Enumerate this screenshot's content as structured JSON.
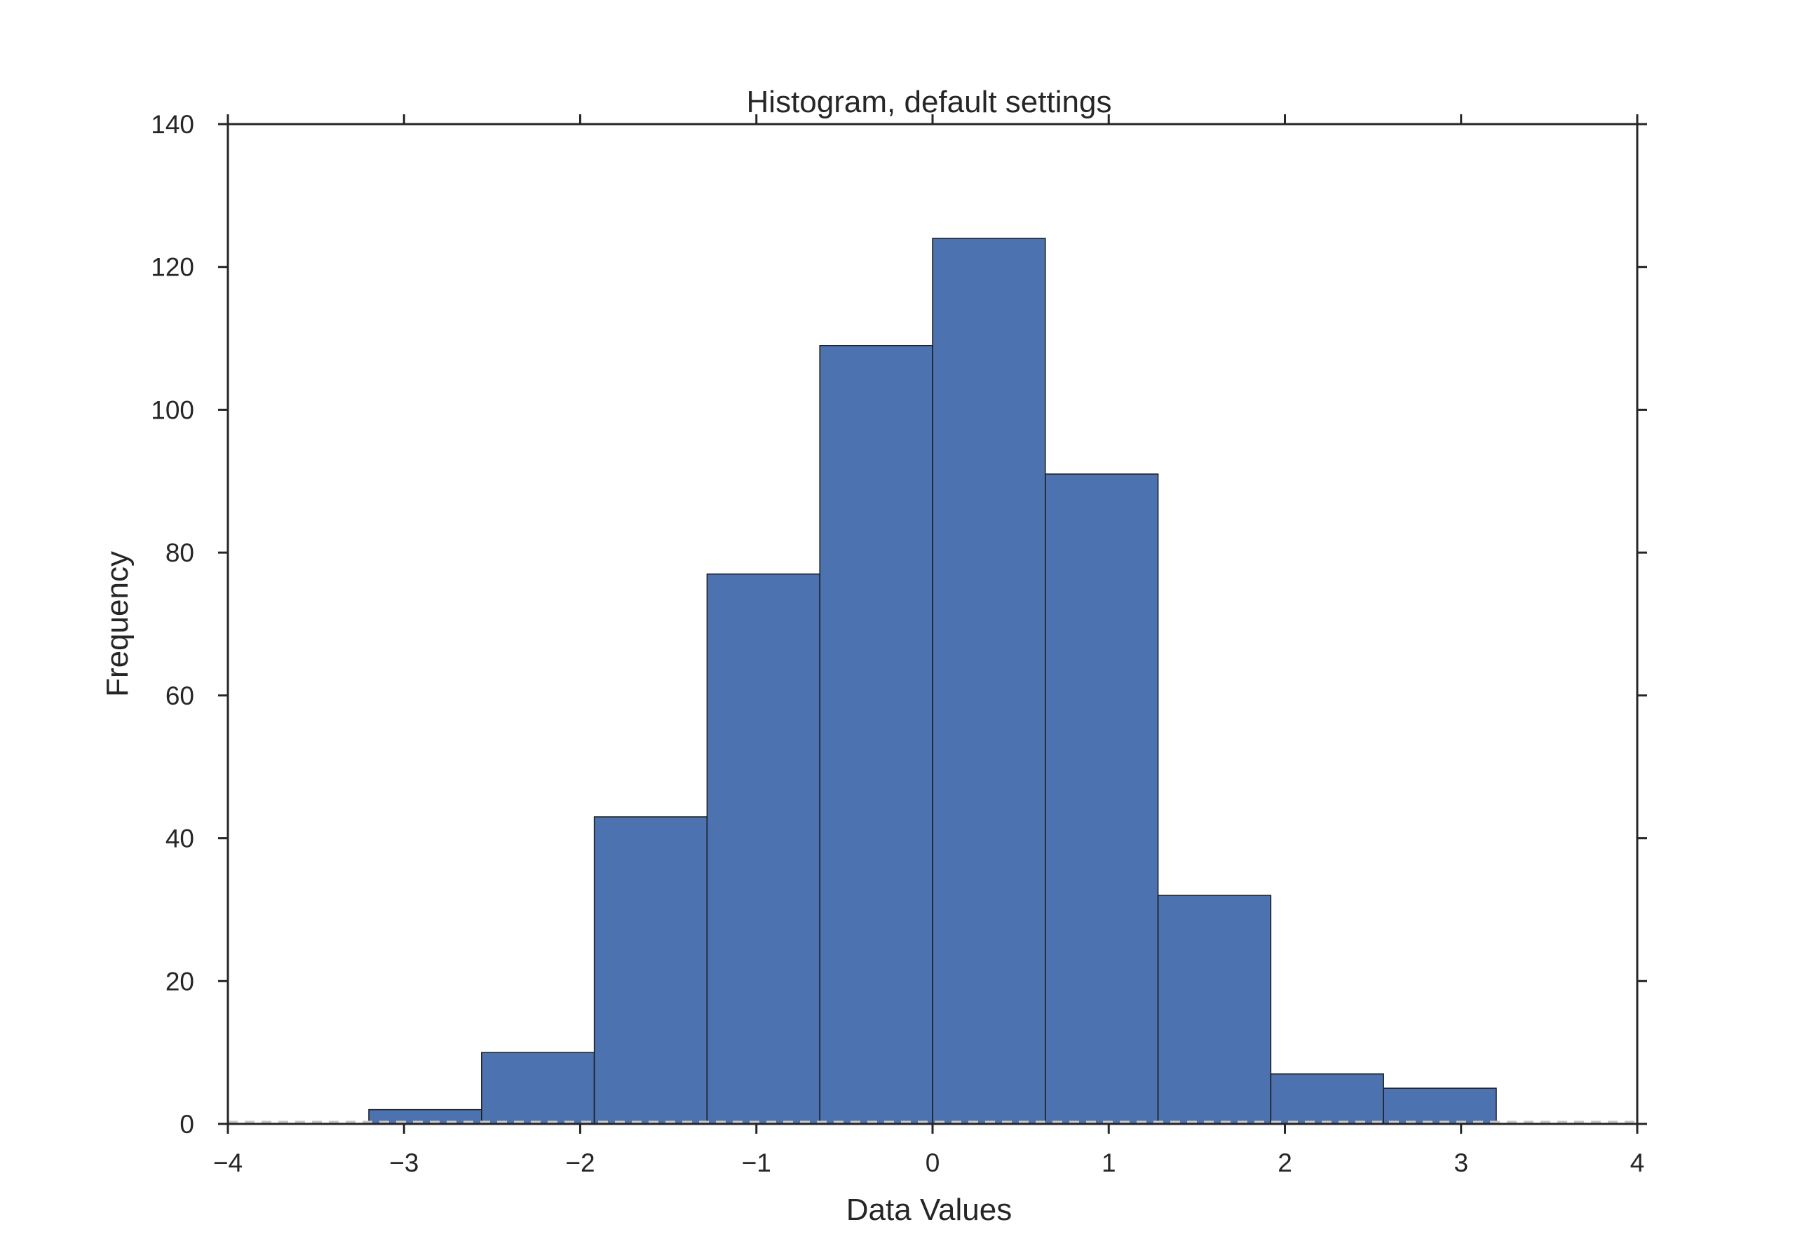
{
  "chart_data": {
    "type": "bar",
    "title": "Histogram, default settings",
    "xlabel": "Data Values",
    "ylabel": "Frequency",
    "xlim": [
      -4,
      4
    ],
    "ylim": [
      0,
      140
    ],
    "bins": [
      {
        "x0": -3.2,
        "x1": -2.56,
        "value": 2
      },
      {
        "x0": -2.56,
        "x1": -1.92,
        "value": 10
      },
      {
        "x0": -1.92,
        "x1": -1.28,
        "value": 43
      },
      {
        "x0": -1.28,
        "x1": -0.64,
        "value": 77
      },
      {
        "x0": -0.64,
        "x1": 0.0,
        "value": 109
      },
      {
        "x0": 0.0,
        "x1": 0.64,
        "value": 124
      },
      {
        "x0": 0.64,
        "x1": 1.28,
        "value": 91
      },
      {
        "x0": 1.28,
        "x1": 1.92,
        "value": 32
      },
      {
        "x0": 1.92,
        "x1": 2.56,
        "value": 7
      },
      {
        "x0": 2.56,
        "x1": 3.2,
        "value": 5
      }
    ],
    "xticks": [
      {
        "value": -4,
        "label": "−4"
      },
      {
        "value": -3,
        "label": "−3"
      },
      {
        "value": -2,
        "label": "−2"
      },
      {
        "value": -1,
        "label": "−1"
      },
      {
        "value": 0,
        "label": "0"
      },
      {
        "value": 1,
        "label": "1"
      },
      {
        "value": 2,
        "label": "2"
      },
      {
        "value": 3,
        "label": "3"
      },
      {
        "value": 4,
        "label": "4"
      }
    ],
    "yticks": [
      {
        "value": 0,
        "label": "0"
      },
      {
        "value": 20,
        "label": "20"
      },
      {
        "value": 40,
        "label": "40"
      },
      {
        "value": 60,
        "label": "60"
      },
      {
        "value": 80,
        "label": "80"
      },
      {
        "value": 100,
        "label": "100"
      },
      {
        "value": 120,
        "label": "120"
      },
      {
        "value": 140,
        "label": "140"
      }
    ],
    "grid": false,
    "baseline": "dashed",
    "colors": {
      "bar": "#4c72b0",
      "edge": "#1a1a1a",
      "axis": "#262626",
      "baseline": "#c8c8c8"
    }
  }
}
